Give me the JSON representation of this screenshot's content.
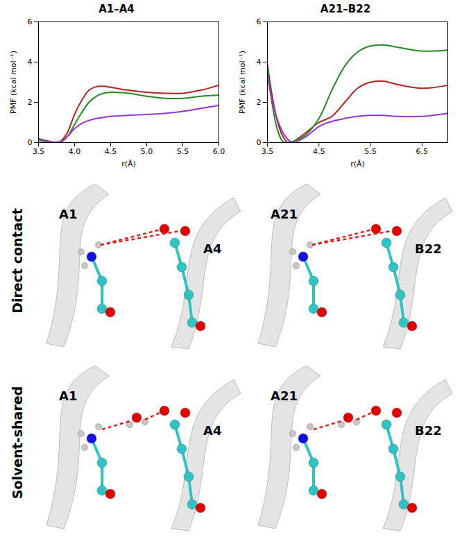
{
  "chart_data": [
    {
      "type": "line",
      "title": "A1–A4",
      "x_label": "r(Å)",
      "y_label": "PMF (kcal mol⁻¹)",
      "x": [
        3.5,
        3.6,
        3.7,
        3.8,
        3.9,
        4.0,
        4.1,
        4.2,
        4.3,
        4.4,
        4.5,
        4.75,
        5.0,
        5.25,
        5.5,
        5.75,
        6.0
      ],
      "series": [
        {
          "color": "#b22222",
          "values": [
            0.2,
            0.1,
            0.02,
            0.05,
            0.5,
            1.4,
            2.1,
            2.6,
            2.78,
            2.8,
            2.75,
            2.6,
            2.5,
            2.45,
            2.45,
            2.6,
            2.85
          ]
        },
        {
          "color": "#228b22",
          "values": [
            0.1,
            0.05,
            0.02,
            0.0,
            0.3,
            0.9,
            1.5,
            2.0,
            2.3,
            2.45,
            2.5,
            2.45,
            2.3,
            2.2,
            2.2,
            2.3,
            2.35
          ]
        },
        {
          "color": "#9932cc",
          "values": [
            0.2,
            0.1,
            0.02,
            0.05,
            0.3,
            0.7,
            0.95,
            1.1,
            1.2,
            1.25,
            1.3,
            1.35,
            1.4,
            1.45,
            1.55,
            1.7,
            1.85
          ]
        }
      ],
      "xlim": [
        3.5,
        6.0
      ],
      "xticks": [
        3.5,
        {
          "value": 4,
          "label": "4.0"
        },
        4.5,
        {
          "value": 5,
          "label": "5.0"
        },
        5.5,
        {
          "value": 6,
          "label": "6.0"
        }
      ],
      "ylim": [
        0,
        6
      ],
      "yticks": [
        0,
        2,
        4,
        6
      ]
    },
    {
      "type": "line",
      "title": "A21–B22",
      "x_label": "r(Å)",
      "y_label": "PMF (kcal mol⁻¹)",
      "x": [
        3.5,
        3.6,
        3.7,
        3.8,
        3.9,
        4.0,
        4.25,
        4.5,
        4.75,
        5.0,
        5.25,
        5.5,
        5.75,
        6.0,
        6.5,
        7.0
      ],
      "series": [
        {
          "color": "#b22222",
          "values": [
            3.9,
            2.2,
            1.0,
            0.3,
            0.0,
            0.05,
            0.5,
            1.0,
            1.3,
            2.0,
            2.7,
            3.0,
            3.05,
            2.9,
            2.7,
            2.85
          ]
        },
        {
          "color": "#228b22",
          "values": [
            3.8,
            1.8,
            0.6,
            0.05,
            0.0,
            0.05,
            0.4,
            1.2,
            2.6,
            3.8,
            4.5,
            4.8,
            4.85,
            4.75,
            4.55,
            4.6
          ]
        },
        {
          "color": "#9932cc",
          "values": [
            3.3,
            2.0,
            1.1,
            0.5,
            0.15,
            0.0,
            0.3,
            0.8,
            1.05,
            1.2,
            1.3,
            1.35,
            1.35,
            1.3,
            1.3,
            1.45
          ]
        }
      ],
      "xlim": [
        3.5,
        7.0
      ],
      "xticks": [
        3.5,
        4.5,
        5.5,
        6.5
      ],
      "ylim": [
        0,
        6
      ],
      "yticks": [
        0,
        2,
        4,
        6
      ]
    }
  ],
  "structures": {
    "rows": [
      {
        "label": "Direct contact",
        "panels": [
          {
            "residues": [
              "A1",
              "A4"
            ]
          },
          {
            "residues": [
              "A21",
              "B22"
            ]
          }
        ]
      },
      {
        "label": "Solvent-shared",
        "panels": [
          {
            "residues": [
              "A1",
              "A4"
            ]
          },
          {
            "residues": [
              "A21",
              "B22"
            ]
          }
        ]
      }
    ]
  }
}
